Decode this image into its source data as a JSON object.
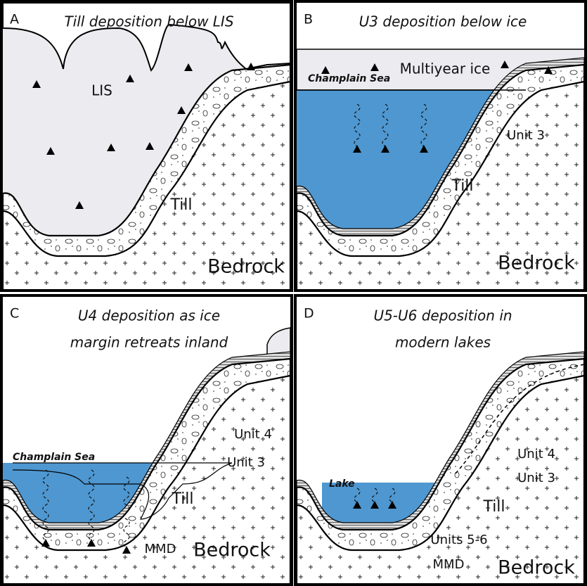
{
  "panels": [
    {
      "letter": "A",
      "title_lines": [
        "Till deposition below LIS"
      ],
      "labels": [
        "LIS",
        "Till",
        "Bedrock"
      ]
    },
    {
      "letter": "B",
      "title_lines": [
        "U3 deposition below ice"
      ],
      "labels": [
        "Multiyear ice",
        "Champlain Sea",
        "Unit 3",
        "Till",
        "Bedrock"
      ]
    },
    {
      "letter": "C",
      "title_lines": [
        "U4 deposition as ice",
        "margin retreats inland"
      ],
      "labels": [
        "Champlain Sea",
        "Unit 4",
        "Unit 3",
        "Till",
        "MMD",
        "Bedrock"
      ]
    },
    {
      "letter": "D",
      "title_lines": [
        "U5-U6 deposition in",
        "modern lakes"
      ],
      "labels": [
        "Lake",
        "Unit 4",
        "Unit 3",
        "Till",
        "Units 5-6",
        "MMD",
        "Bedrock"
      ]
    }
  ]
}
